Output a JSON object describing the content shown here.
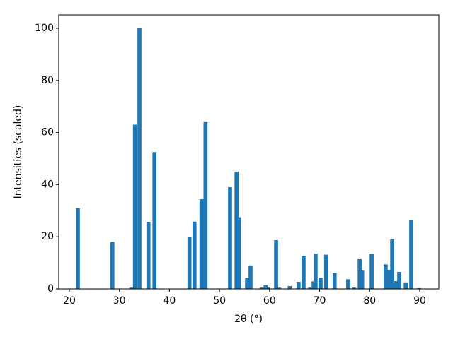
{
  "chart_data": {
    "type": "bar",
    "xlabel": "2θ (°)",
    "ylabel": "Intensities (scaled)",
    "color": "#1f77b4",
    "x": [
      21.7,
      28.6,
      32.4,
      33.1,
      34.0,
      35.8,
      37.0,
      44.0,
      45.0,
      46.4,
      47.2,
      52.1,
      53.4,
      53.9,
      55.5,
      56.2,
      58.5,
      59.2,
      59.7,
      61.3,
      61.9,
      64.0,
      65.8,
      66.8,
      68.1,
      68.8,
      69.2,
      70.2,
      71.3,
      73.0,
      75.7,
      76.9,
      78.0,
      78.5,
      80.4,
      83.2,
      83.8,
      84.5,
      85.2,
      85.9,
      87.2,
      88.3,
      89.9
    ],
    "values": [
      31,
      18,
      0.5,
      63,
      100,
      25.7,
      52.5,
      19.8,
      25.8,
      34.4,
      64,
      39,
      45,
      27.5,
      4.3,
      9,
      0.5,
      1.5,
      0.5,
      18.7,
      0.5,
      1.1,
      2.7,
      12.7,
      0.5,
      2.9,
      13.5,
      4.3,
      13.1,
      6.1,
      3.7,
      0.5,
      11.4,
      7,
      13.5,
      9.4,
      7.3,
      19,
      3,
      6.5,
      2.5,
      26.3,
      0.3
    ],
    "xlim": [
      17.88,
      93.82
    ],
    "ylim": [
      0,
      105.15
    ],
    "xticks": [
      20,
      30,
      40,
      50,
      60,
      70,
      80,
      90
    ],
    "yticks": [
      0,
      20,
      40,
      60,
      80,
      100
    ]
  }
}
